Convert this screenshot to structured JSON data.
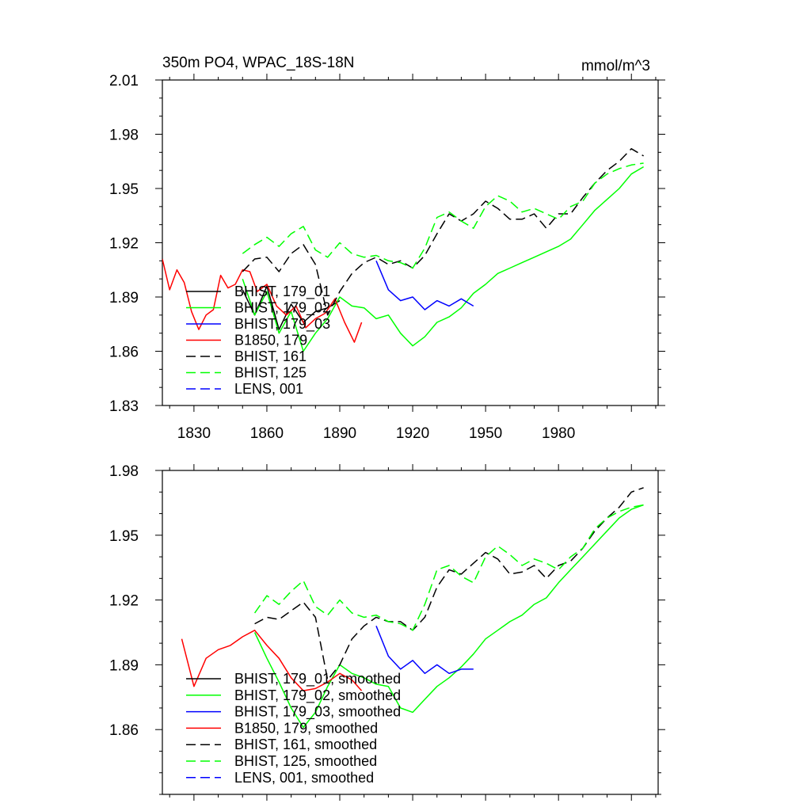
{
  "chart_data": [
    {
      "type": "line",
      "title": "350m PO4, WPAC_18S-18N",
      "units": "mmol/m^3",
      "xlim": [
        1817,
        2021
      ],
      "ylim": [
        1.83,
        2.01
      ],
      "xticks": [
        1830,
        1860,
        1890,
        1920,
        1950,
        1980
      ],
      "yticks": [
        1.83,
        1.86,
        1.89,
        1.92,
        1.95,
        1.98,
        2.01
      ],
      "ytick_labels": [
        "1.83",
        "1.86",
        "1.89",
        "1.92",
        "1.95",
        "1.98",
        "2.01"
      ],
      "grid": false,
      "legend_position": "lower-left",
      "series": [
        {
          "name": "BHIST, 179_01",
          "color": "#000000",
          "dash": "solid",
          "x": [
            1850,
            1855,
            1860,
            1865,
            1870,
            1875,
            1880,
            1885,
            1890
          ],
          "y": [
            1.894,
            1.88,
            1.896,
            1.872,
            1.886,
            1.876,
            1.882,
            1.884,
            1.888
          ]
        },
        {
          "name": "BHIST, 179_02",
          "color": "#00ff00",
          "dash": "solid",
          "x": [
            1850,
            1855,
            1860,
            1865,
            1870,
            1875,
            1880,
            1885,
            1890,
            1895,
            1900,
            1905,
            1910,
            1915,
            1920,
            1925,
            1930,
            1935,
            1940,
            1945,
            1950,
            1955,
            1960,
            1965,
            1970,
            1975,
            1980,
            1985,
            1990,
            1995,
            2000,
            2005,
            2010,
            2015
          ],
          "y": [
            1.9,
            1.88,
            1.893,
            1.87,
            1.882,
            1.86,
            1.87,
            1.878,
            1.89,
            1.885,
            1.884,
            1.878,
            1.88,
            1.87,
            1.863,
            1.868,
            1.876,
            1.879,
            1.884,
            1.892,
            1.897,
            1.903,
            1.906,
            1.909,
            1.912,
            1.915,
            1.918,
            1.922,
            1.93,
            1.938,
            1.944,
            1.95,
            1.958,
            1.962
          ]
        },
        {
          "name": "BHIST, 179_03",
          "color": "#0000ff",
          "dash": "solid",
          "x": [
            1905,
            1910,
            1915,
            1920,
            1925,
            1930,
            1935,
            1940,
            1945
          ],
          "y": [
            1.91,
            1.894,
            1.888,
            1.89,
            1.883,
            1.888,
            1.885,
            1.889,
            1.885
          ]
        },
        {
          "name": "B1850, 179",
          "color": "#ff0000",
          "dash": "solid",
          "x": [
            1817,
            1820,
            1823,
            1826,
            1829,
            1832,
            1835,
            1838,
            1841,
            1844,
            1847,
            1850,
            1853,
            1856,
            1860,
            1864,
            1868,
            1872,
            1876,
            1880,
            1884,
            1888,
            1892,
            1896,
            1899
          ],
          "y": [
            1.911,
            1.894,
            1.905,
            1.898,
            1.882,
            1.872,
            1.88,
            1.883,
            1.902,
            1.895,
            1.897,
            1.905,
            1.904,
            1.893,
            1.897,
            1.885,
            1.88,
            1.885,
            1.873,
            1.878,
            1.881,
            1.889,
            1.876,
            1.865,
            1.876
          ]
        },
        {
          "name": "BHIST, 161",
          "color": "#000000",
          "dash": "dashed",
          "x": [
            1850,
            1855,
            1860,
            1865,
            1870,
            1875,
            1880,
            1885,
            1890,
            1895,
            1900,
            1905,
            1910,
            1915,
            1920,
            1925,
            1930,
            1935,
            1940,
            1945,
            1950,
            1955,
            1960,
            1965,
            1970,
            1975,
            1980,
            1985,
            1990,
            1995,
            2000,
            2005,
            2010,
            2015
          ],
          "y": [
            1.904,
            1.911,
            1.912,
            1.904,
            1.914,
            1.919,
            1.908,
            1.88,
            1.893,
            1.903,
            1.909,
            1.912,
            1.908,
            1.91,
            1.906,
            1.913,
            1.925,
            1.936,
            1.932,
            1.936,
            1.943,
            1.939,
            1.933,
            1.933,
            1.936,
            1.928,
            1.936,
            1.936,
            1.945,
            1.953,
            1.96,
            1.965,
            1.972,
            1.968
          ]
        },
        {
          "name": "BHIST, 125",
          "color": "#00ff00",
          "dash": "dashed",
          "x": [
            1850,
            1855,
            1860,
            1865,
            1870,
            1875,
            1880,
            1885,
            1890,
            1895,
            1900,
            1905,
            1910,
            1915,
            1920,
            1925,
            1930,
            1935,
            1940,
            1945,
            1950,
            1955,
            1960,
            1965,
            1970,
            1975,
            1980,
            1985,
            1990,
            1995,
            2000,
            2005,
            2010,
            2015
          ],
          "y": [
            1.914,
            1.919,
            1.923,
            1.918,
            1.925,
            1.929,
            1.916,
            1.912,
            1.92,
            1.914,
            1.912,
            1.913,
            1.91,
            1.909,
            1.906,
            1.917,
            1.934,
            1.937,
            1.932,
            1.928,
            1.94,
            1.946,
            1.943,
            1.937,
            1.939,
            1.936,
            1.933,
            1.94,
            1.943,
            1.953,
            1.958,
            1.961,
            1.963,
            1.964
          ]
        },
        {
          "name": "LENS, 001",
          "color": "#0000ff",
          "dash": "dashed",
          "x": [],
          "y": []
        }
      ]
    },
    {
      "type": "line",
      "xlim": [
        1817,
        2021
      ],
      "ylim": [
        1.83,
        1.98
      ],
      "yticks": [
        1.86,
        1.89,
        1.92,
        1.95,
        1.98
      ],
      "ytick_labels": [
        "1.86",
        "1.89",
        "1.92",
        "1.95",
        "1.98"
      ],
      "grid": false,
      "legend_position": "lower-left",
      "series": [
        {
          "name": "BHIST, 179_01, smoothed",
          "color": "#000000",
          "dash": "solid",
          "x": [],
          "y": []
        },
        {
          "name": "BHIST, 179_02, smoothed",
          "color": "#00ff00",
          "dash": "solid",
          "x": [
            1855,
            1860,
            1865,
            1870,
            1875,
            1880,
            1885,
            1890,
            1895,
            1900,
            1905,
            1910,
            1915,
            1920,
            1925,
            1930,
            1935,
            1940,
            1945,
            1950,
            1955,
            1960,
            1965,
            1970,
            1975,
            1980,
            1985,
            1990,
            1995,
            2000,
            2005,
            2010,
            2015
          ],
          "y": [
            1.905,
            1.893,
            1.882,
            1.87,
            1.861,
            1.868,
            1.88,
            1.89,
            1.886,
            1.884,
            1.881,
            1.88,
            1.87,
            1.868,
            1.874,
            1.88,
            1.884,
            1.889,
            1.895,
            1.902,
            1.906,
            1.91,
            1.913,
            1.918,
            1.921,
            1.928,
            1.934,
            1.94,
            1.946,
            1.952,
            1.958,
            1.962,
            1.964
          ]
        },
        {
          "name": "BHIST, 179_03, smoothed",
          "color": "#0000ff",
          "dash": "solid",
          "x": [
            1905,
            1910,
            1915,
            1920,
            1925,
            1930,
            1935,
            1940,
            1945
          ],
          "y": [
            1.908,
            1.894,
            1.888,
            1.892,
            1.886,
            1.89,
            1.886,
            1.888,
            1.888
          ]
        },
        {
          "name": "B1850, 179, smoothed",
          "color": "#ff0000",
          "dash": "solid",
          "x": [
            1825,
            1830,
            1835,
            1840,
            1845,
            1850,
            1855,
            1860,
            1865,
            1870,
            1875,
            1880,
            1885,
            1890,
            1895,
            1899
          ],
          "y": [
            1.902,
            1.88,
            1.893,
            1.897,
            1.899,
            1.903,
            1.906,
            1.899,
            1.893,
            1.884,
            1.878,
            1.879,
            1.882,
            1.886,
            1.883,
            1.878
          ]
        },
        {
          "name": "BHIST, 161, smoothed",
          "color": "#000000",
          "dash": "dashed",
          "x": [
            1855,
            1860,
            1865,
            1870,
            1875,
            1880,
            1885,
            1890,
            1895,
            1900,
            1905,
            1910,
            1915,
            1920,
            1925,
            1930,
            1935,
            1940,
            1945,
            1950,
            1955,
            1960,
            1965,
            1970,
            1975,
            1980,
            1985,
            1990,
            1995,
            2000,
            2005,
            2010,
            2015
          ],
          "y": [
            1.909,
            1.912,
            1.911,
            1.915,
            1.919,
            1.912,
            1.883,
            1.89,
            1.902,
            1.908,
            1.912,
            1.91,
            1.91,
            1.906,
            1.912,
            1.926,
            1.934,
            1.932,
            1.937,
            1.942,
            1.939,
            1.932,
            1.933,
            1.936,
            1.93,
            1.936,
            1.938,
            1.944,
            1.952,
            1.958,
            1.963,
            1.97,
            1.972
          ]
        },
        {
          "name": "BHIST, 125, smoothed",
          "color": "#00ff00",
          "dash": "dashed",
          "x": [
            1855,
            1860,
            1865,
            1870,
            1875,
            1880,
            1885,
            1890,
            1895,
            1900,
            1905,
            1910,
            1915,
            1920,
            1925,
            1930,
            1935,
            1940,
            1945,
            1950,
            1955,
            1960,
            1965,
            1970,
            1975,
            1980,
            1985,
            1990,
            1995,
            2000,
            2005,
            2010,
            2015
          ],
          "y": [
            1.914,
            1.922,
            1.918,
            1.924,
            1.929,
            1.917,
            1.913,
            1.92,
            1.914,
            1.912,
            1.913,
            1.91,
            1.909,
            1.906,
            1.918,
            1.934,
            1.936,
            1.931,
            1.928,
            1.94,
            1.945,
            1.941,
            1.936,
            1.939,
            1.937,
            1.934,
            1.94,
            1.944,
            1.953,
            1.958,
            1.961,
            1.963,
            1.964
          ]
        },
        {
          "name": "LENS, 001, smoothed",
          "color": "#0000ff",
          "dash": "dashed",
          "x": [],
          "y": []
        }
      ]
    }
  ]
}
